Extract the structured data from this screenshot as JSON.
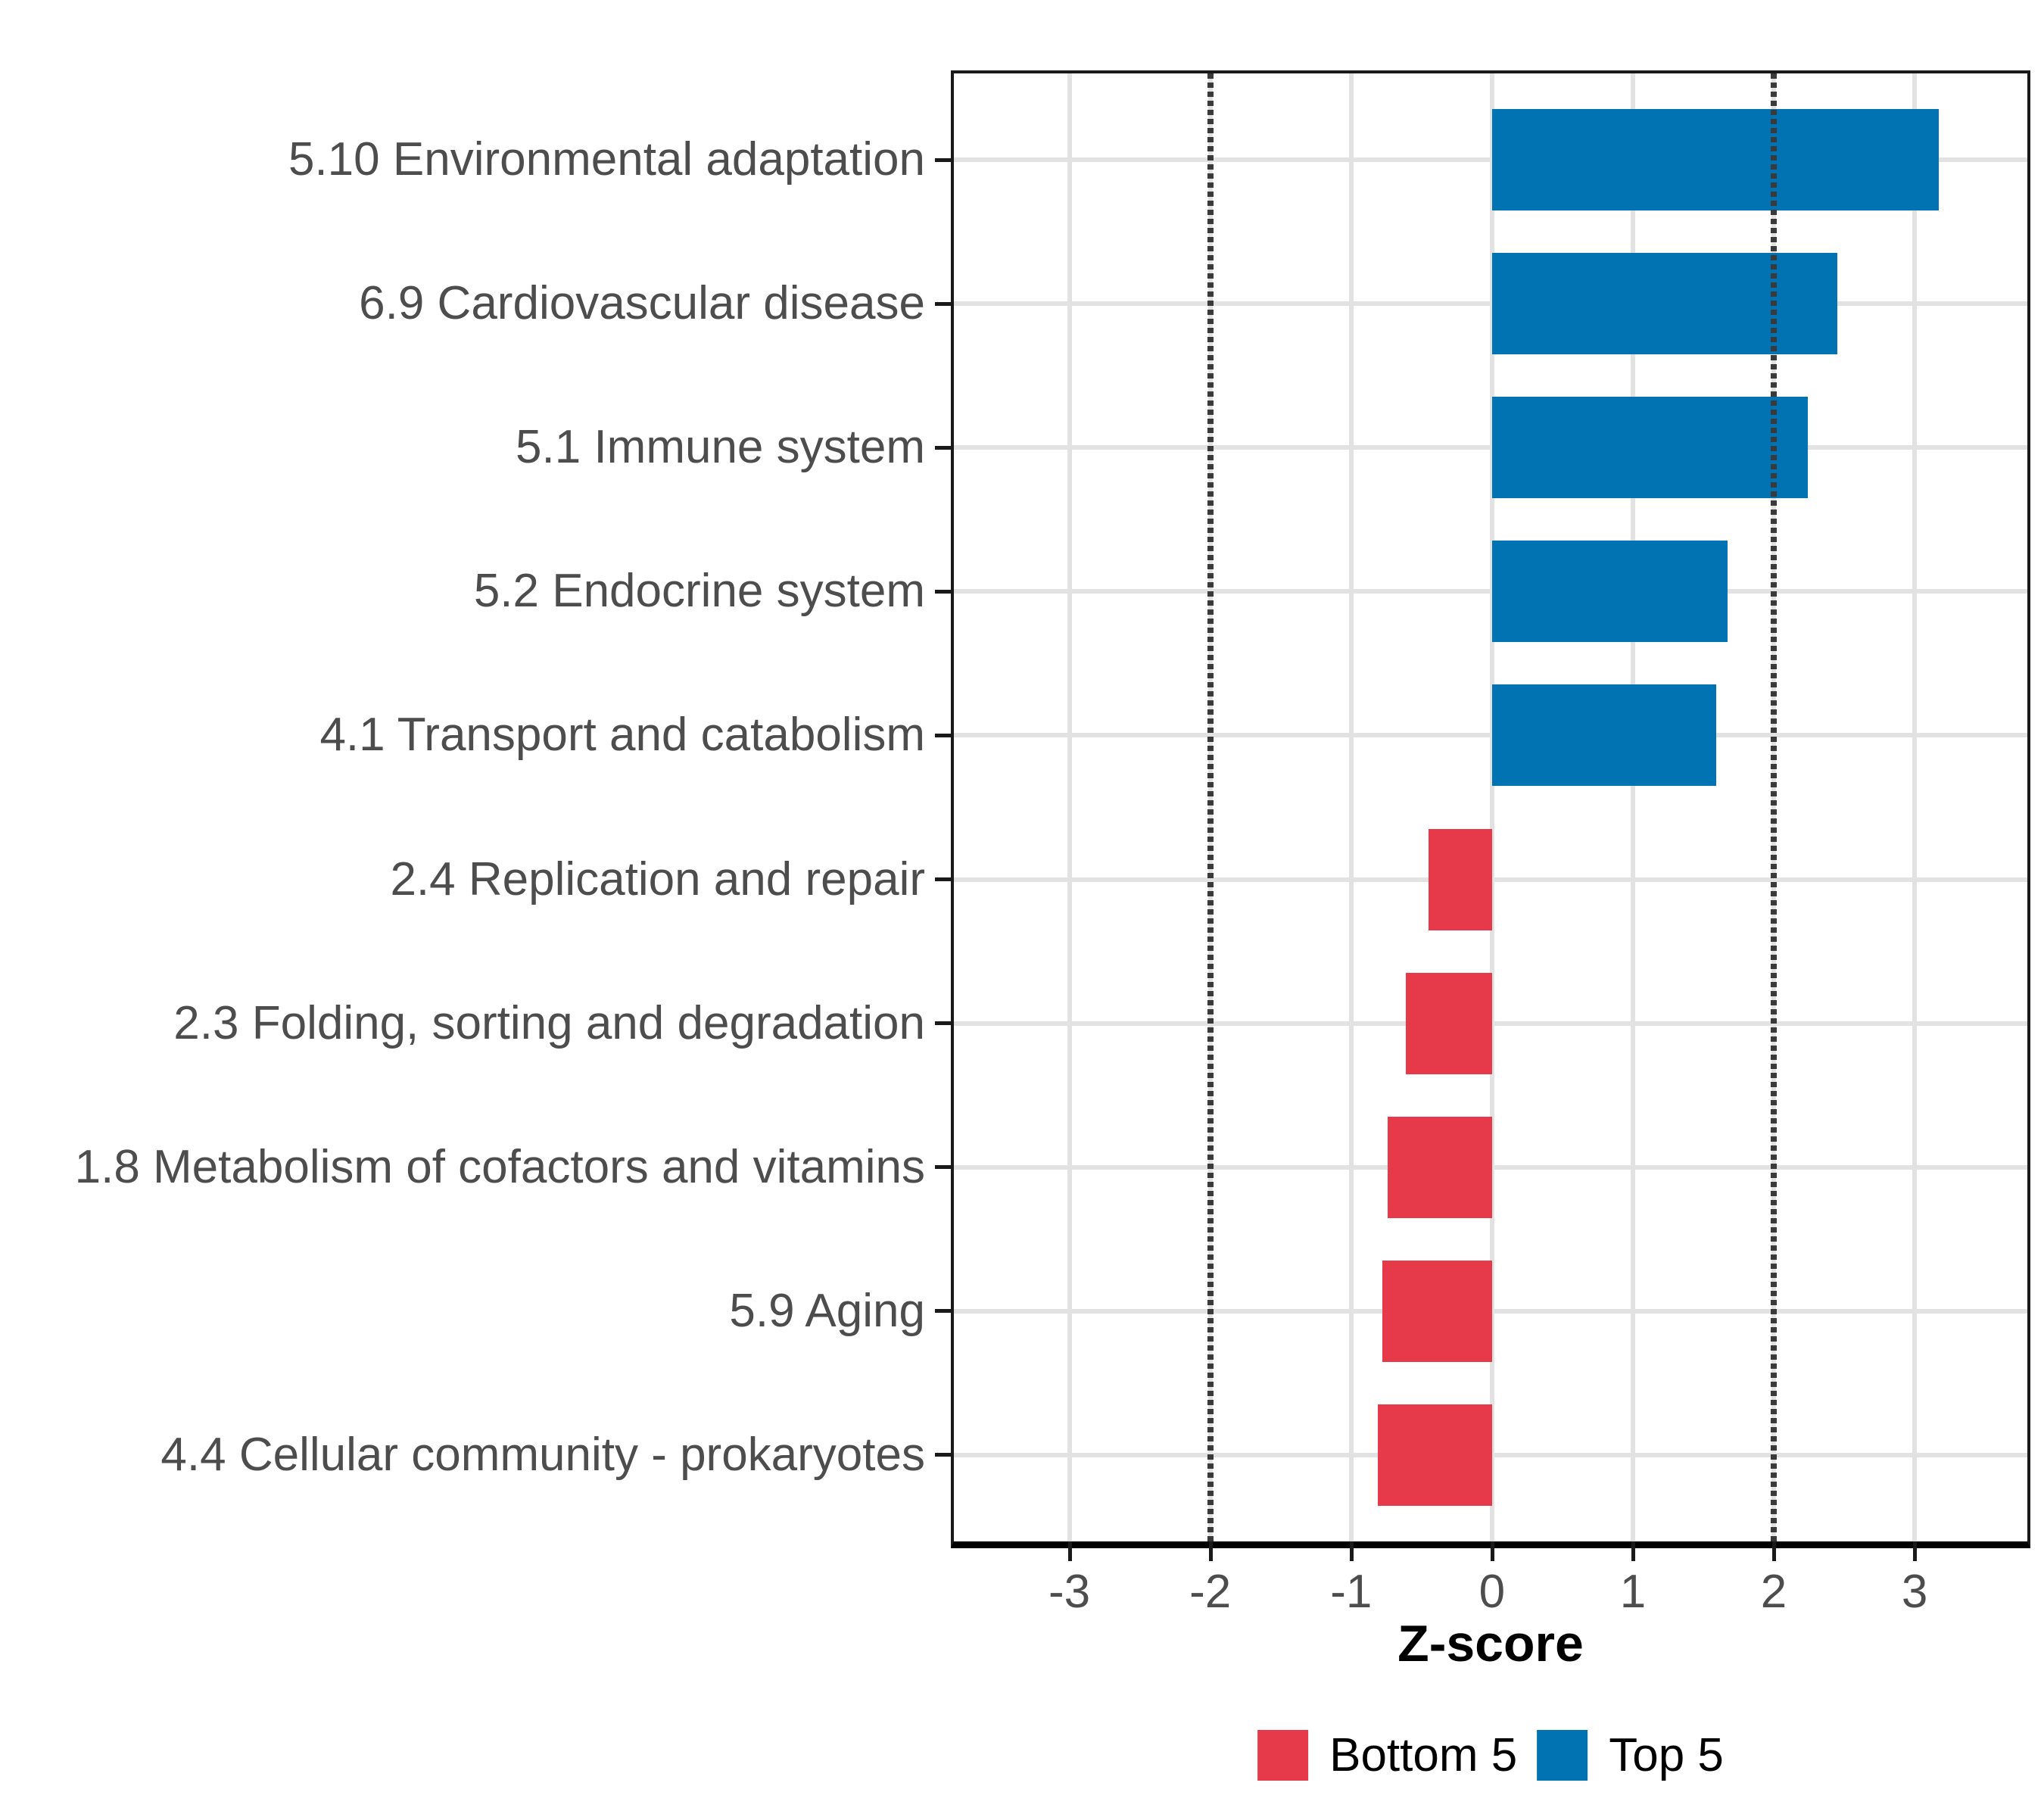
{
  "chart_data": {
    "type": "bar",
    "orientation": "horizontal",
    "title": "",
    "xlabel": "Z-score",
    "ylabel": "",
    "categories": [
      "5.10 Environmental adaptation",
      "6.9 Cardiovascular disease",
      "5.1 Immune system",
      "5.2 Endocrine system",
      "4.1 Transport and catabolism",
      "2.4 Replication and repair",
      "2.3 Folding, sorting and degradation",
      "1.8 Metabolism of cofactors and vitamins",
      "5.9 Aging",
      "4.4 Cellular community - prokaryotes"
    ],
    "values": [
      3.17,
      2.45,
      2.24,
      1.67,
      1.59,
      -0.45,
      -0.61,
      -0.74,
      -0.78,
      -0.81
    ],
    "groups": [
      "Top 5",
      "Top 5",
      "Top 5",
      "Top 5",
      "Top 5",
      "Bottom 5",
      "Bottom 5",
      "Bottom 5",
      "Bottom 5",
      "Bottom 5"
    ],
    "x_ticks": [
      -3,
      -2,
      -1,
      0,
      1,
      2,
      3
    ],
    "xlim": [
      -3.82,
      3.8
    ],
    "reference_lines_x": [
      -2,
      2
    ],
    "grid": true,
    "legend_position": "bottom",
    "colors": {
      "top5": "#0173b3",
      "bottom5": "#e63a4b",
      "gridline": "#e2e2e2",
      "reference_line": "#3a3a3a",
      "axis_text": "#4d4d4d"
    },
    "legend": [
      {
        "label": "Bottom 5",
        "color": "#e63a4b"
      },
      {
        "label": "Top 5",
        "color": "#0173b3"
      }
    ]
  }
}
